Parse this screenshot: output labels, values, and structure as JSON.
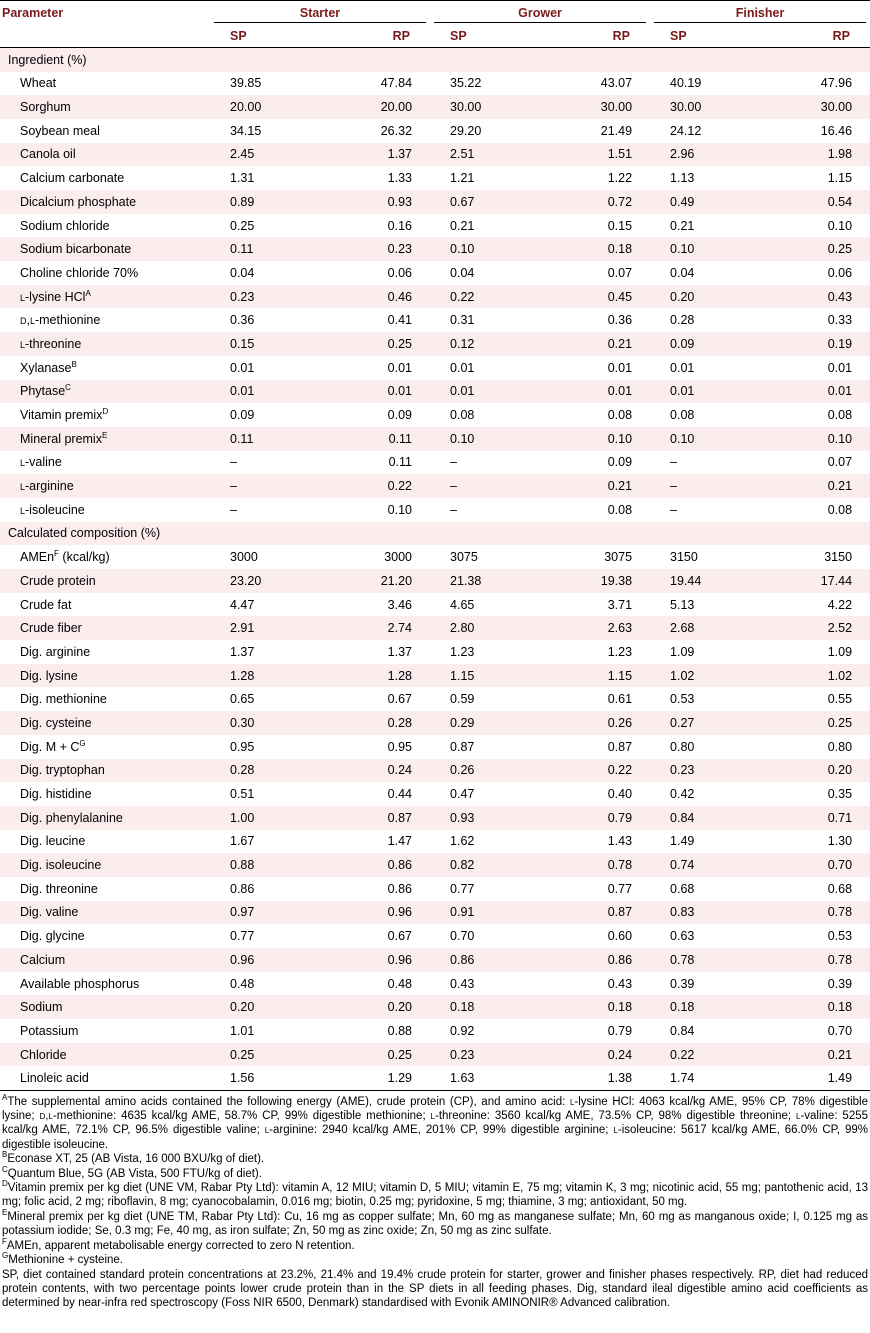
{
  "header": {
    "parameter": "Parameter",
    "phases": [
      "Starter",
      "Grower",
      "Finisher"
    ],
    "sp": "SP",
    "rp": "RP"
  },
  "sections": [
    {
      "title": "Ingredient (%)",
      "rows": [
        {
          "label": "Wheat",
          "values": [
            "39.85",
            "47.84",
            "35.22",
            "43.07",
            "40.19",
            "47.96"
          ]
        },
        {
          "label": "Sorghum",
          "values": [
            "20.00",
            "20.00",
            "30.00",
            "30.00",
            "30.00",
            "30.00"
          ]
        },
        {
          "label": "Soybean meal",
          "values": [
            "34.15",
            "26.32",
            "29.20",
            "21.49",
            "24.12",
            "16.46"
          ]
        },
        {
          "label": "Canola oil",
          "values": [
            "2.45",
            "1.37",
            "2.51",
            "1.51",
            "2.96",
            "1.98"
          ]
        },
        {
          "label": "Calcium carbonate",
          "values": [
            "1.31",
            "1.33",
            "1.21",
            "1.22",
            "1.13",
            "1.15"
          ]
        },
        {
          "label": "Dicalcium phosphate",
          "values": [
            "0.89",
            "0.93",
            "0.67",
            "0.72",
            "0.49",
            "0.54"
          ]
        },
        {
          "label": "Sodium chloride",
          "values": [
            "0.25",
            "0.16",
            "0.21",
            "0.15",
            "0.21",
            "0.10"
          ]
        },
        {
          "label": "Sodium bicarbonate",
          "values": [
            "0.11",
            "0.23",
            "0.10",
            "0.18",
            "0.10",
            "0.25"
          ]
        },
        {
          "label": "Choline chloride 70%",
          "values": [
            "0.04",
            "0.06",
            "0.04",
            "0.07",
            "0.04",
            "0.06"
          ]
        },
        {
          "label": "l-lysine HCl",
          "sup": "A",
          "values": [
            "0.23",
            "0.46",
            "0.22",
            "0.45",
            "0.20",
            "0.43"
          ]
        },
        {
          "label": "d,l-methionine",
          "values": [
            "0.36",
            "0.41",
            "0.31",
            "0.36",
            "0.28",
            "0.33"
          ]
        },
        {
          "label": "l-threonine",
          "values": [
            "0.15",
            "0.25",
            "0.12",
            "0.21",
            "0.09",
            "0.19"
          ]
        },
        {
          "label": "Xylanase",
          "sup": "B",
          "values": [
            "0.01",
            "0.01",
            "0.01",
            "0.01",
            "0.01",
            "0.01"
          ]
        },
        {
          "label": "Phytase",
          "sup": "C",
          "values": [
            "0.01",
            "0.01",
            "0.01",
            "0.01",
            "0.01",
            "0.01"
          ]
        },
        {
          "label": "Vitamin premix",
          "sup": "D",
          "values": [
            "0.09",
            "0.09",
            "0.08",
            "0.08",
            "0.08",
            "0.08"
          ]
        },
        {
          "label": "Mineral premix",
          "sup": "E",
          "values": [
            "0.11",
            "0.11",
            "0.10",
            "0.10",
            "0.10",
            "0.10"
          ]
        },
        {
          "label": "l-valine",
          "values": [
            "–",
            "0.11",
            "–",
            "0.09",
            "–",
            "0.07"
          ]
        },
        {
          "label": "l-arginine",
          "values": [
            "–",
            "0.22",
            "–",
            "0.21",
            "–",
            "0.21"
          ]
        },
        {
          "label": "l-isoleucine",
          "values": [
            "–",
            "0.10",
            "–",
            "0.08",
            "–",
            "0.08"
          ]
        }
      ]
    },
    {
      "title": "Calculated composition (%)",
      "rows": [
        {
          "label": "AMEn",
          "sup": "F",
          "suffix": " (kcal/kg)",
          "values": [
            "3000",
            "3000",
            "3075",
            "3075",
            "3150",
            "3150"
          ]
        },
        {
          "label": "Crude protein",
          "values": [
            "23.20",
            "21.20",
            "21.38",
            "19.38",
            "19.44",
            "17.44"
          ]
        },
        {
          "label": "Crude fat",
          "values": [
            "4.47",
            "3.46",
            "4.65",
            "3.71",
            "5.13",
            "4.22"
          ]
        },
        {
          "label": "Crude fiber",
          "values": [
            "2.91",
            "2.74",
            "2.80",
            "2.63",
            "2.68",
            "2.52"
          ]
        },
        {
          "label": "Dig. arginine",
          "values": [
            "1.37",
            "1.37",
            "1.23",
            "1.23",
            "1.09",
            "1.09"
          ]
        },
        {
          "label": "Dig. lysine",
          "values": [
            "1.28",
            "1.28",
            "1.15",
            "1.15",
            "1.02",
            "1.02"
          ]
        },
        {
          "label": "Dig. methionine",
          "values": [
            "0.65",
            "0.67",
            "0.59",
            "0.61",
            "0.53",
            "0.55"
          ]
        },
        {
          "label": "Dig. cysteine",
          "values": [
            "0.30",
            "0.28",
            "0.29",
            "0.26",
            "0.27",
            "0.25"
          ]
        },
        {
          "label": "Dig. M + C",
          "sup": "G",
          "values": [
            "0.95",
            "0.95",
            "0.87",
            "0.87",
            "0.80",
            "0.80"
          ]
        },
        {
          "label": "Dig. tryptophan",
          "values": [
            "0.28",
            "0.24",
            "0.26",
            "0.22",
            "0.23",
            "0.20"
          ]
        },
        {
          "label": "Dig. histidine",
          "values": [
            "0.51",
            "0.44",
            "0.47",
            "0.40",
            "0.42",
            "0.35"
          ]
        },
        {
          "label": "Dig. phenylalanine",
          "values": [
            "1.00",
            "0.87",
            "0.93",
            "0.79",
            "0.84",
            "0.71"
          ]
        },
        {
          "label": "Dig. leucine",
          "values": [
            "1.67",
            "1.47",
            "1.62",
            "1.43",
            "1.49",
            "1.30"
          ]
        },
        {
          "label": "Dig. isoleucine",
          "values": [
            "0.88",
            "0.86",
            "0.82",
            "0.78",
            "0.74",
            "0.70"
          ]
        },
        {
          "label": "Dig. threonine",
          "values": [
            "0.86",
            "0.86",
            "0.77",
            "0.77",
            "0.68",
            "0.68"
          ]
        },
        {
          "label": "Dig. valine",
          "values": [
            "0.97",
            "0.96",
            "0.91",
            "0.87",
            "0.83",
            "0.78"
          ]
        },
        {
          "label": "Dig. glycine",
          "values": [
            "0.77",
            "0.67",
            "0.70",
            "0.60",
            "0.63",
            "0.53"
          ]
        },
        {
          "label": "Calcium",
          "values": [
            "0.96",
            "0.96",
            "0.86",
            "0.86",
            "0.78",
            "0.78"
          ]
        },
        {
          "label": "Available phosphorus",
          "values": [
            "0.48",
            "0.48",
            "0.43",
            "0.43",
            "0.39",
            "0.39"
          ]
        },
        {
          "label": "Sodium",
          "values": [
            "0.20",
            "0.20",
            "0.18",
            "0.18",
            "0.18",
            "0.18"
          ]
        },
        {
          "label": "Potassium",
          "values": [
            "1.01",
            "0.88",
            "0.92",
            "0.79",
            "0.84",
            "0.70"
          ]
        },
        {
          "label": "Chloride",
          "values": [
            "0.25",
            "0.25",
            "0.23",
            "0.24",
            "0.22",
            "0.21"
          ]
        },
        {
          "label": "Linoleic acid",
          "values": [
            "1.56",
            "1.29",
            "1.63",
            "1.38",
            "1.74",
            "1.49"
          ]
        }
      ]
    }
  ],
  "footnotes": [
    {
      "mark": "A",
      "text": "The supplemental amino acids contained the following energy (AME), crude protein (CP), and amino acid: l-lysine HCl: 4063 kcal/kg AME, 95% CP, 78% digestible lysine; d,l-methionine: 4635 kcal/kg AME, 58.7% CP, 99% digestible methionine; l-threonine: 3560 kcal/kg AME, 73.5% CP, 98% digestible threonine; l-valine: 5255 kcal/kg AME, 72.1% CP, 96.5% digestible valine; l-arginine: 2940 kcal/kg AME, 201% CP, 99% digestible arginine; l-isoleucine: 5617 kcal/kg AME, 66.0% CP, 99% digestible isoleucine."
    },
    {
      "mark": "B",
      "text": "Econase XT, 25 (AB Vista, 16 000 BXU/kg of diet)."
    },
    {
      "mark": "C",
      "text": "Quantum Blue, 5G (AB Vista, 500 FTU/kg of diet)."
    },
    {
      "mark": "D",
      "text": "Vitamin premix per kg diet (UNE VM, Rabar Pty Ltd): vitamin A, 12 MIU; vitamin D, 5 MIU; vitamin E, 75 mg; vitamin K, 3 mg; nicotinic acid, 55 mg; pantothenic acid, 13 mg; folic acid, 2 mg; riboflavin, 8 mg; cyanocobalamin, 0.016 mg; biotin, 0.25 mg; pyridoxine, 5 mg; thiamine, 3 mg; antioxidant, 50 mg."
    },
    {
      "mark": "E",
      "text": "Mineral premix per kg diet (UNE TM, Rabar Pty Ltd): Cu, 16 mg as copper sulfate; Mn, 60 mg as manganese sulfate; Mn, 60 mg as manganous oxide; I, 0.125 mg as potassium iodide; Se, 0.3 mg; Fe, 40 mg, as iron sulfate; Zn, 50 mg as zinc oxide; Zn, 50 mg as zinc sulfate."
    },
    {
      "mark": "F",
      "text": "AMEn, apparent metabolisable energy corrected to zero N retention."
    },
    {
      "mark": "G",
      "text": "Methionine + cysteine."
    },
    {
      "mark": "",
      "text": "SP, diet contained standard protein concentrations at 23.2%, 21.4% and 19.4% crude protein for starter, grower and finisher phases respectively. RP, diet had reduced protein contents, with two percentage points lower crude protein than in the SP diets in all feeding phases.  Dig, standard ileal digestible amino acid coefficients as determined by near-infra red spectroscopy (Foss NIR 6500, Denmark) standardised with Evonik AMINONIR"
    },
    {
      "mark": "",
      "text": "® Advanced calibration."
    }
  ]
}
